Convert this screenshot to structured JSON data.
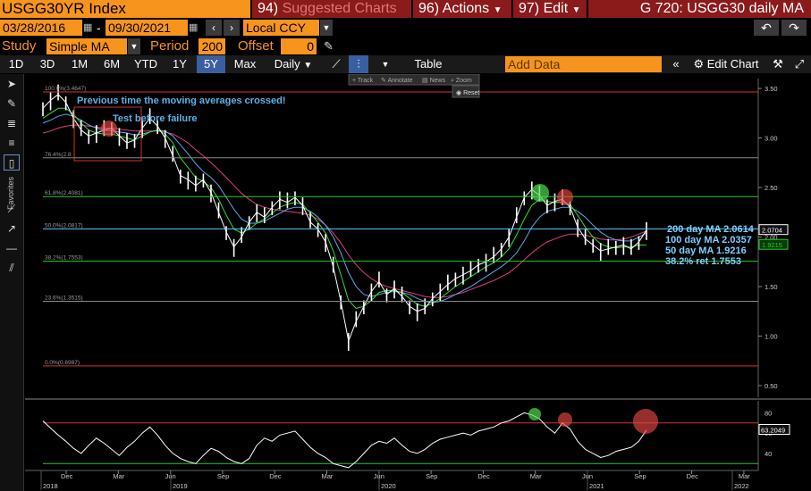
{
  "header": {
    "security": "USGG30YR Index",
    "menu1_num": "94)",
    "menu1": "Suggested Charts",
    "menu2_num": "96)",
    "menu2": "Actions",
    "menu3_num": "97)",
    "menu3": "Edit",
    "title": "G 720: USGG30 daily MA"
  },
  "dates": {
    "start": "03/28/2016",
    "sep": "-",
    "end": "09/30/2021",
    "currency": "Local CCY"
  },
  "study": {
    "label": "Study",
    "value": "Simple MA",
    "period_label": "Period",
    "period": "200",
    "offset_label": "Offset",
    "offset": "0"
  },
  "toolbar": {
    "ranges": [
      "1D",
      "3D",
      "1M",
      "6M",
      "YTD",
      "1Y",
      "5Y",
      "Max"
    ],
    "selected": "5Y",
    "interval": "Daily",
    "table": "Table",
    "add_data_placeholder": "Add Data",
    "edit_chart": "Edit Chart"
  },
  "sidebar_label": "Favorites",
  "mini_toolbar": {
    "track": "Track",
    "annotate": "Annotate",
    "news": "News",
    "zoom": "Zoom",
    "reset": "Reset"
  },
  "chart_data": [
    {
      "type": "line",
      "ylim": [
        0.4,
        3.6
      ],
      "yticks": [
        "3.50",
        "3.00",
        "2.50",
        "2.00",
        "1.50",
        "1.00",
        "0.50"
      ],
      "price_tags": [
        {
          "value": 2.0704,
          "label": "2.0704",
          "color": "#ffffff"
        },
        {
          "value": 1.9215,
          "label": "1.9215",
          "color": "#22cc22"
        }
      ],
      "fib_levels": [
        {
          "label": "100.0%(3.4647)",
          "value": 3.4647,
          "color": "#d93030"
        },
        {
          "label": "76.4%(2.8",
          "value": 2.8,
          "color": "#888888"
        },
        {
          "label": "61.8%(2.4081)",
          "value": 2.4081,
          "color": "#22cc22"
        },
        {
          "label": "50.0%(2.0817)",
          "value": 2.0817,
          "color": "#5fc8ff"
        },
        {
          "label": "38.2%(1.7553)",
          "value": 1.7553,
          "color": "#22cc22"
        },
        {
          "label": "23.6%(1.3515)",
          "value": 1.3515,
          "color": "#888888"
        },
        {
          "label": "0.0%(0.6987)",
          "value": 0.6987,
          "color": "#d93030"
        }
      ],
      "annotations": {
        "crossed": "Previous time the moving averages crossed!",
        "test": "Test before failure"
      },
      "legend": [
        {
          "text": "200 day MA 2.0614",
          "color": "#7fd0ff"
        },
        {
          "text": "100 day MA 2.0357",
          "color": "#7fd0ff"
        },
        {
          "text": "50 day MA 1.9216",
          "color": "#7fd0ff"
        },
        {
          "text": "38.2% ret 1.7553",
          "color": "#7fd0ff"
        }
      ],
      "price": [
        3.3,
        3.38,
        3.44,
        3.36,
        3.2,
        3.08,
        3.02,
        3.05,
        3.08,
        3.1,
        3.02,
        2.95,
        2.98,
        3.1,
        3.2,
        3.12,
        3.0,
        2.82,
        2.62,
        2.58,
        2.52,
        2.58,
        2.45,
        2.25,
        2.05,
        1.9,
        2.0,
        2.15,
        2.25,
        2.2,
        2.3,
        2.38,
        2.35,
        2.4,
        2.32,
        2.15,
        2.08,
        1.95,
        1.7,
        1.35,
        0.95,
        1.15,
        1.3,
        1.45,
        1.55,
        1.42,
        1.48,
        1.4,
        1.3,
        1.25,
        1.28,
        1.38,
        1.45,
        1.52,
        1.58,
        1.62,
        1.66,
        1.72,
        1.75,
        1.8,
        1.88,
        2.0,
        2.2,
        2.4,
        2.48,
        2.42,
        2.32,
        2.36,
        2.38,
        2.3,
        2.1,
        1.98,
        1.92,
        1.86,
        1.88,
        1.9,
        1.92,
        1.88,
        1.95,
        2.07
      ],
      "ma50": [
        3.2,
        3.25,
        3.3,
        3.3,
        3.24,
        3.15,
        3.08,
        3.05,
        3.04,
        3.04,
        3.02,
        3.0,
        2.98,
        3.02,
        3.06,
        3.08,
        3.04,
        2.95,
        2.8,
        2.7,
        2.6,
        2.56,
        2.5,
        2.38,
        2.22,
        2.08,
        2.04,
        2.08,
        2.14,
        2.18,
        2.24,
        2.3,
        2.33,
        2.35,
        2.33,
        2.24,
        2.15,
        2.04,
        1.86,
        1.62,
        1.36,
        1.28,
        1.3,
        1.36,
        1.44,
        1.46,
        1.46,
        1.44,
        1.38,
        1.32,
        1.3,
        1.33,
        1.38,
        1.44,
        1.5,
        1.55,
        1.6,
        1.65,
        1.7,
        1.74,
        1.8,
        1.88,
        2.02,
        2.18,
        2.32,
        2.38,
        2.36,
        2.35,
        2.35,
        2.33,
        2.22,
        2.1,
        2.0,
        1.93,
        1.9,
        1.89,
        1.9,
        1.9,
        1.92,
        1.92
      ],
      "ma100": [
        3.15,
        3.18,
        3.22,
        3.24,
        3.22,
        3.18,
        3.13,
        3.1,
        3.08,
        3.07,
        3.06,
        3.05,
        3.03,
        3.04,
        3.06,
        3.08,
        3.07,
        3.02,
        2.93,
        2.84,
        2.74,
        2.66,
        2.6,
        2.52,
        2.4,
        2.28,
        2.18,
        2.14,
        2.14,
        2.16,
        2.2,
        2.24,
        2.28,
        2.3,
        2.3,
        2.26,
        2.2,
        2.12,
        2.0,
        1.84,
        1.64,
        1.5,
        1.42,
        1.4,
        1.42,
        1.44,
        1.45,
        1.44,
        1.42,
        1.38,
        1.35,
        1.34,
        1.35,
        1.38,
        1.42,
        1.46,
        1.5,
        1.55,
        1.6,
        1.65,
        1.7,
        1.76,
        1.84,
        1.96,
        2.1,
        2.2,
        2.26,
        2.28,
        2.3,
        2.3,
        2.26,
        2.2,
        2.12,
        2.05,
        2.0,
        1.97,
        1.96,
        1.96,
        2.0,
        2.04
      ],
      "ma200": [
        3.05,
        3.07,
        3.1,
        3.12,
        3.13,
        3.13,
        3.12,
        3.11,
        3.1,
        3.1,
        3.09,
        3.08,
        3.07,
        3.07,
        3.07,
        3.07,
        3.06,
        3.04,
        3.0,
        2.95,
        2.88,
        2.82,
        2.75,
        2.68,
        2.6,
        2.52,
        2.44,
        2.38,
        2.33,
        2.3,
        2.28,
        2.27,
        2.26,
        2.25,
        2.24,
        2.22,
        2.18,
        2.12,
        2.04,
        1.94,
        1.82,
        1.72,
        1.64,
        1.58,
        1.53,
        1.5,
        1.48,
        1.46,
        1.44,
        1.42,
        1.4,
        1.39,
        1.39,
        1.4,
        1.42,
        1.44,
        1.47,
        1.5,
        1.53,
        1.56,
        1.6,
        1.64,
        1.7,
        1.77,
        1.84,
        1.9,
        1.95,
        1.98,
        2.01,
        2.03,
        2.03,
        2.02,
        2.0,
        1.98,
        1.97,
        1.97,
        1.98,
        2.0,
        2.03,
        2.06
      ]
    },
    {
      "type": "line",
      "ylim": [
        25,
        90
      ],
      "yticks": [
        "80",
        "60",
        "40"
      ],
      "tag": "63.2049",
      "upper": 70,
      "lower": 30,
      "values": [
        72,
        65,
        58,
        52,
        45,
        40,
        48,
        55,
        50,
        44,
        38,
        46,
        52,
        60,
        66,
        58,
        48,
        40,
        35,
        32,
        30,
        38,
        45,
        42,
        36,
        32,
        30,
        35,
        48,
        55,
        52,
        58,
        60,
        62,
        54,
        46,
        40,
        36,
        30,
        28,
        26,
        32,
        40,
        48,
        52,
        50,
        55,
        48,
        42,
        40,
        44,
        50,
        54,
        56,
        58,
        60,
        58,
        62,
        64,
        66,
        70,
        72,
        76,
        80,
        78,
        74,
        66,
        60,
        70,
        64,
        52,
        44,
        40,
        36,
        38,
        42,
        44,
        46,
        52,
        63
      ]
    }
  ],
  "xaxis": {
    "months": [
      "Dec",
      "Mar",
      "Jun",
      "Sep",
      "Dec",
      "Mar",
      "Jun",
      "Sep",
      "Dec",
      "Mar",
      "Jun",
      "Sep",
      "Dec",
      "Mar"
    ],
    "years": [
      "2018",
      "2019",
      "2020",
      "2021",
      "2022"
    ]
  }
}
